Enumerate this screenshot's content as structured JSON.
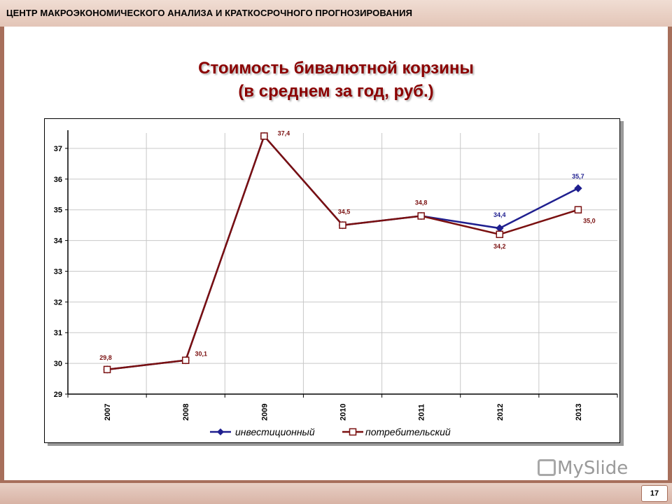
{
  "header": {
    "org_name": "ЦЕНТР МАКРОЭКОНОМИЧЕСКОГО АНАЛИЗА И КРАТКОСРОЧНОГО ПРОГНОЗИРОВАНИЯ"
  },
  "slide": {
    "page_number": "17",
    "logo_text": "MySlide"
  },
  "colors": {
    "frame": "#a76f5b",
    "title": "#8b0000",
    "series_invest": "#1f1f8f",
    "series_consumer": "#7a1010"
  },
  "chart_data": {
    "type": "line",
    "title": "Стоимость бивалютной корзины",
    "subtitle": "(в среднем за год, руб.)",
    "categories": [
      "2007",
      "2008",
      "2009",
      "2010",
      "2011",
      "2012",
      "2013"
    ],
    "ylim": [
      29,
      37.5
    ],
    "yticks": [
      29,
      30,
      31,
      32,
      33,
      34,
      35,
      36,
      37
    ],
    "grid": true,
    "legend_position": "bottom",
    "series": [
      {
        "name": "инвестиционный",
        "marker": "diamond",
        "values": [
          29.8,
          30.1,
          37.4,
          34.5,
          34.8,
          34.4,
          35.7
        ],
        "labels": [
          "",
          "",
          "",
          "",
          "",
          "34,4",
          "35,7"
        ]
      },
      {
        "name": "потребительский",
        "marker": "square",
        "values": [
          29.8,
          30.1,
          37.4,
          34.5,
          34.8,
          34.2,
          35.0
        ],
        "labels": [
          "29,8",
          "30,1",
          "37,4",
          "34,5",
          "34,8",
          "34,2",
          "35,0"
        ]
      }
    ]
  }
}
